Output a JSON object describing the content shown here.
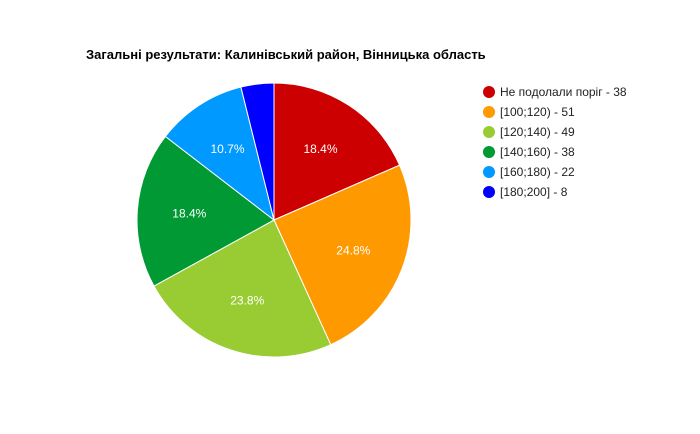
{
  "chart_data": {
    "type": "pie",
    "title": "Загальні результати: Калинівський район, Вінницька область",
    "legend_position": "right",
    "slices": [
      {
        "label": "Не подолали поріг",
        "value": 38,
        "percent_label": "18.4%",
        "legend": "Не подолали поріг - 38",
        "color": "#cc0000"
      },
      {
        "label": "[100;120)",
        "value": 51,
        "percent_label": "24.8%",
        "legend": "[100;120) - 51",
        "color": "#ff9900"
      },
      {
        "label": "[120;140)",
        "value": 49,
        "percent_label": "23.8%",
        "legend": "[120;140) - 49",
        "color": "#99cc33"
      },
      {
        "label": "[140;160)",
        "value": 38,
        "percent_label": "18.4%",
        "legend": "[140;160) - 38",
        "color": "#009933"
      },
      {
        "label": "[160;180)",
        "value": 22,
        "percent_label": "10.7%",
        "legend": "[160;180) - 22",
        "color": "#0099ff"
      },
      {
        "label": "[180;200]",
        "value": 8,
        "percent_label": "",
        "legend": "[180;200] - 8",
        "color": "#0000ff"
      }
    ]
  }
}
